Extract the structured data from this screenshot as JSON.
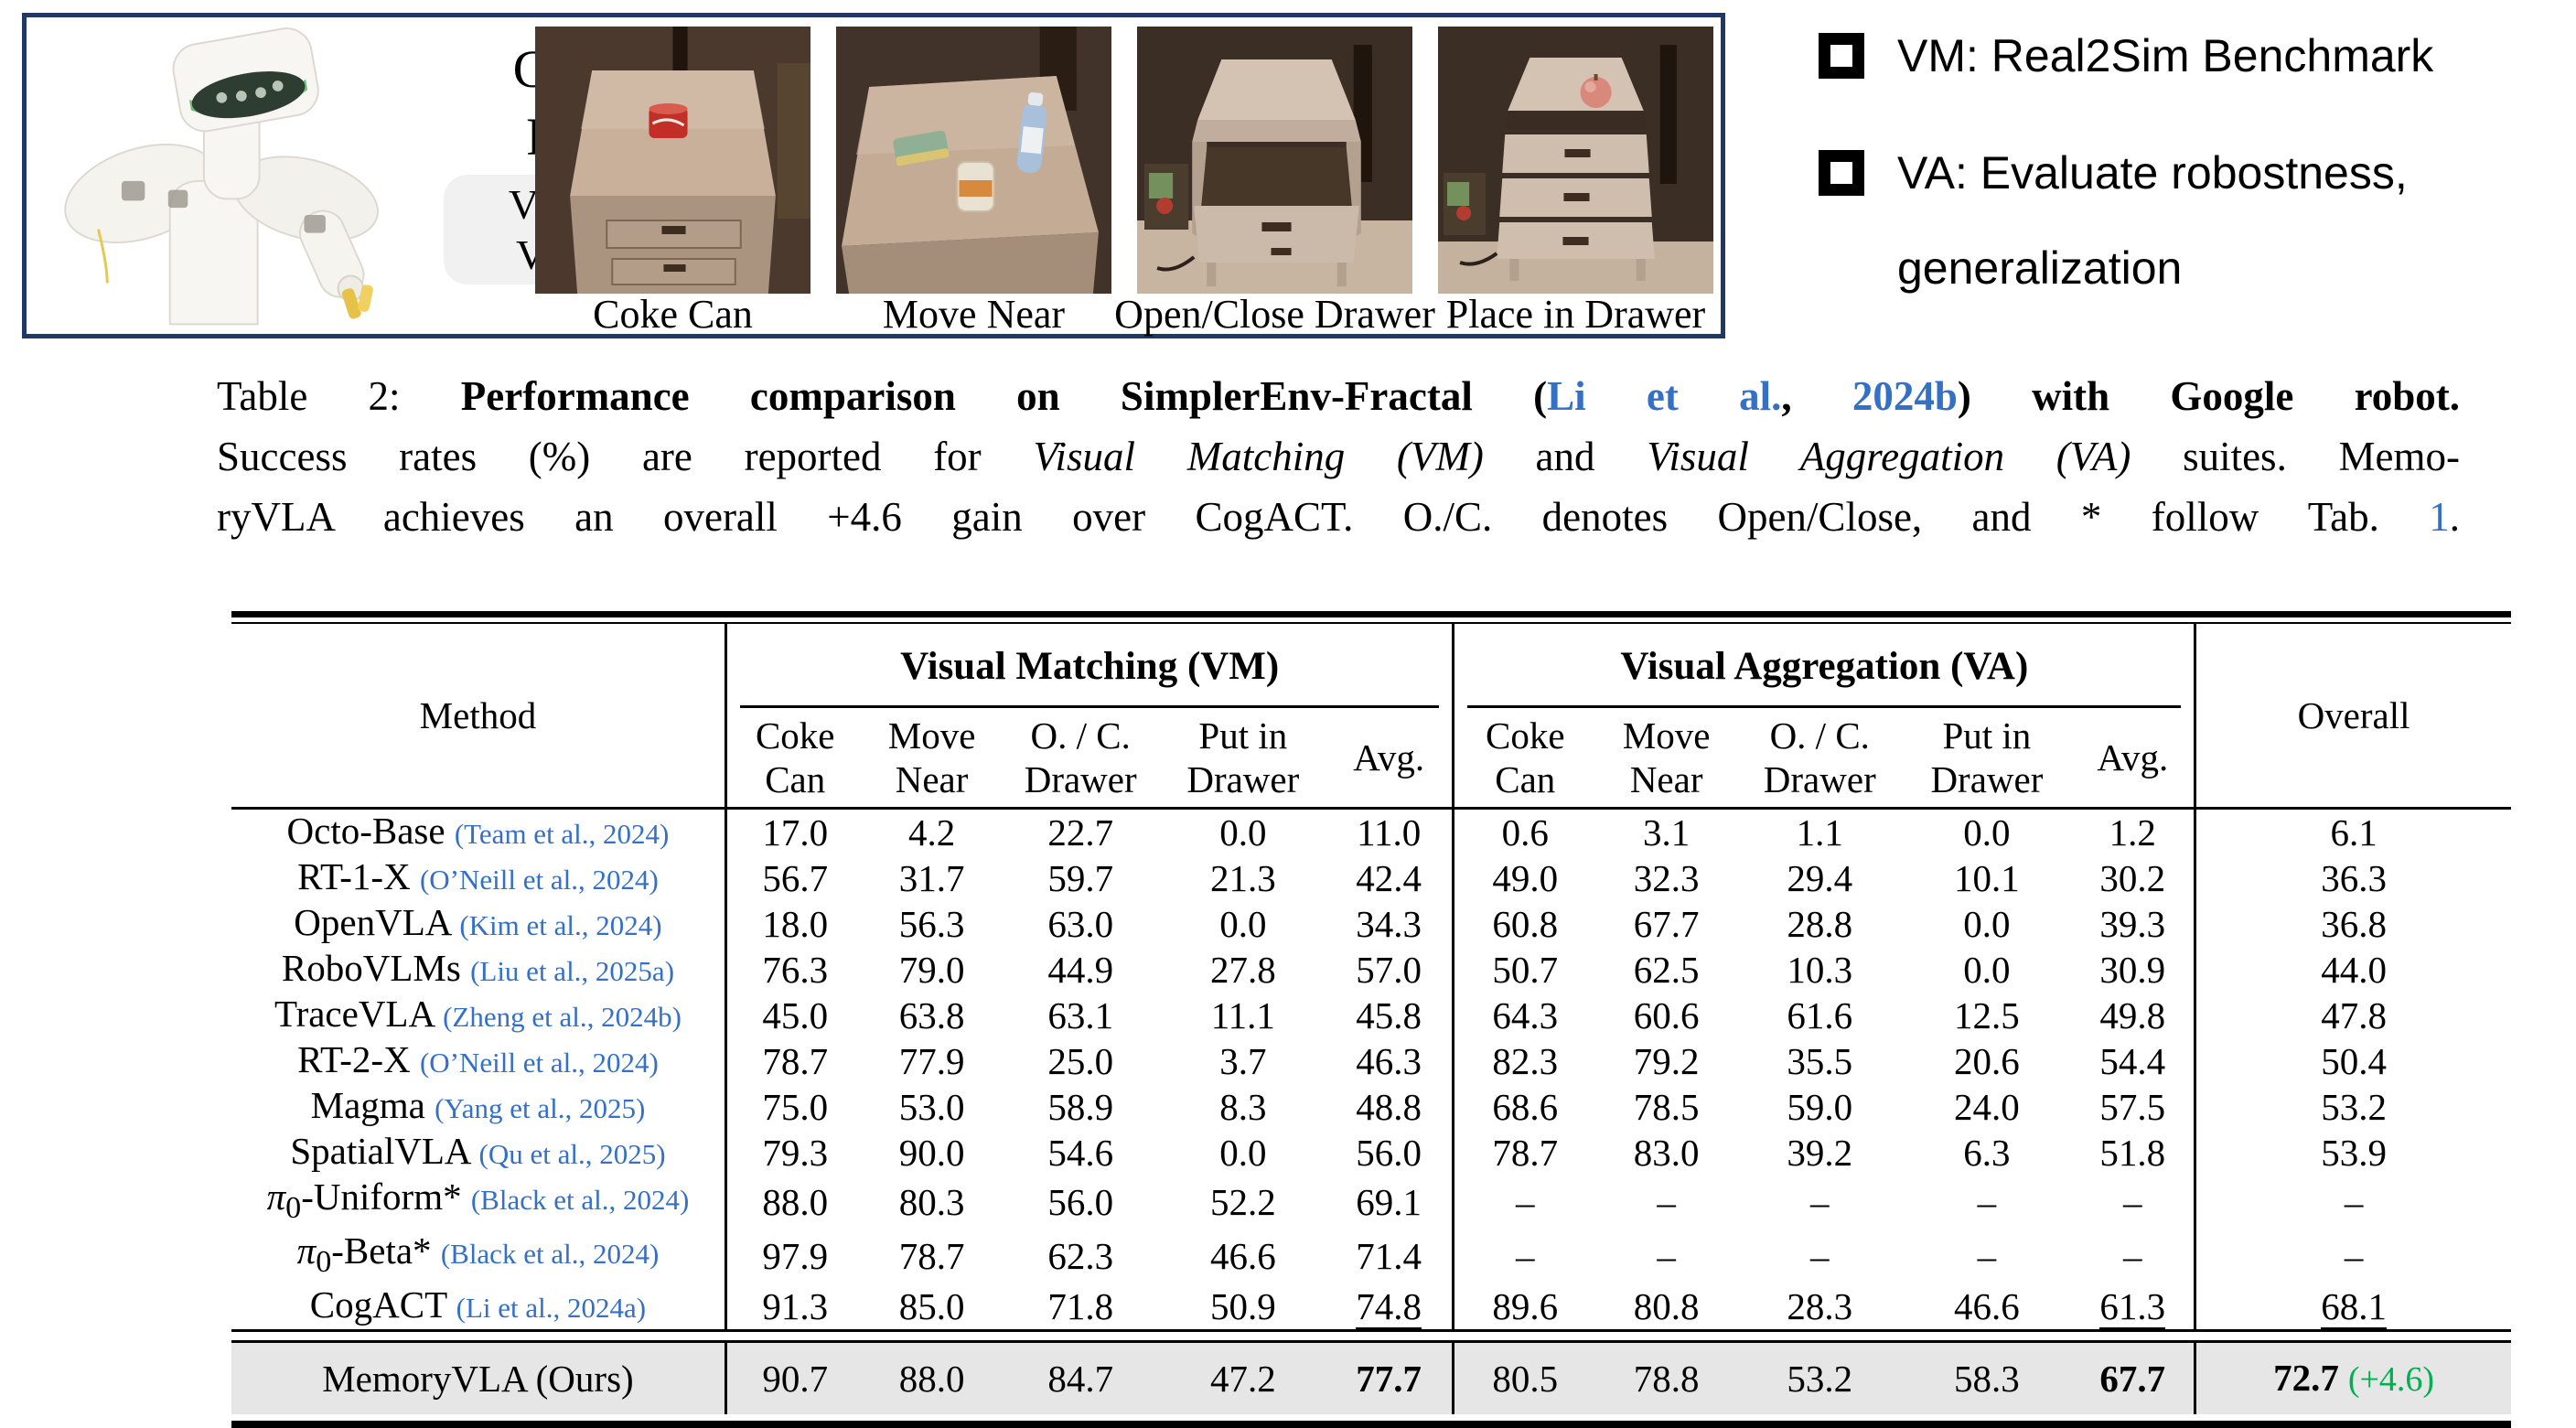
{
  "figure": {
    "robot_label_line1": "Google",
    "robot_label_line2": "Robot",
    "suite_box": [
      "VM Suite",
      "VA Suite"
    ],
    "tasks": [
      "Coke Can",
      "Move Near",
      "Open/Close Drawer",
      "Place in Drawer"
    ]
  },
  "bullets": {
    "item1": "VM: Real2Sim Benchmark",
    "item2_line1": "VA: Evaluate robostness,",
    "item2_line2": "generalization"
  },
  "caption": {
    "lines": [
      [
        {
          "t": "Table 2: ",
          "s": "n"
        },
        {
          "t": "Performance comparison on SimplerEnv-Fractal (",
          "s": "b"
        },
        {
          "t": "Li et al.",
          "s": "bb"
        },
        {
          "t": ", ",
          "s": "b"
        },
        {
          "t": "2024b",
          "s": "bb"
        },
        {
          "t": ") with Google robot.",
          "s": "b"
        }
      ],
      [
        {
          "t": "Success rates (%) are reported for ",
          "s": "n"
        },
        {
          "t": "Visual Matching (VM)",
          "s": "i"
        },
        {
          "t": " and ",
          "s": "n"
        },
        {
          "t": "Visual Aggregation (VA)",
          "s": "i"
        },
        {
          "t": " suites. Memo-",
          "s": "n"
        }
      ],
      [
        {
          "t": "ryVLA achieves an overall +4.6 gain over CogACT. O./C. denotes Open/Close, and * follow Tab. ",
          "s": "n"
        },
        {
          "t": "1",
          "s": "lb"
        },
        {
          "t": ".",
          "s": "n"
        }
      ]
    ]
  },
  "table": {
    "method_header": "Method",
    "overall_header": "Overall",
    "groups": [
      {
        "label": "Visual Matching (VM)",
        "columns": [
          [
            "Coke",
            "Can"
          ],
          [
            "Move",
            "Near"
          ],
          [
            "O. / C.",
            "Drawer"
          ],
          [
            "Put in",
            "Drawer"
          ],
          [
            "Avg."
          ]
        ]
      },
      {
        "label": "Visual Aggregation (VA)",
        "columns": [
          [
            "Coke",
            "Can"
          ],
          [
            "Move",
            "Near"
          ],
          [
            "O. / C.",
            "Drawer"
          ],
          [
            "Put in",
            "Drawer"
          ],
          [
            "Avg."
          ]
        ]
      }
    ],
    "rows": [
      {
        "method": "Octo-Base",
        "cite": "(Team et al., 2024)",
        "vm": [
          "17.0",
          "4.2",
          "22.7",
          "0.0",
          "11.0"
        ],
        "va": [
          "0.6",
          "3.1",
          "1.1",
          "0.0",
          "1.2"
        ],
        "overall": "6.1"
      },
      {
        "method": "RT-1-X",
        "cite": "(O’Neill et al., 2024)",
        "vm": [
          "56.7",
          "31.7",
          "59.7",
          "21.3",
          "42.4"
        ],
        "va": [
          "49.0",
          "32.3",
          "29.4",
          "10.1",
          "30.2"
        ],
        "overall": "36.3"
      },
      {
        "method": "OpenVLA",
        "cite": "(Kim et al., 2024)",
        "vm": [
          "18.0",
          "56.3",
          "63.0",
          "0.0",
          "34.3"
        ],
        "va": [
          "60.8",
          "67.7",
          "28.8",
          "0.0",
          "39.3"
        ],
        "overall": "36.8"
      },
      {
        "method": "RoboVLMs",
        "cite": "(Liu et al., 2025a)",
        "vm": [
          "76.3",
          "79.0",
          "44.9",
          "27.8",
          "57.0"
        ],
        "va": [
          "50.7",
          "62.5",
          "10.3",
          "0.0",
          "30.9"
        ],
        "overall": "44.0"
      },
      {
        "method": "TraceVLA",
        "cite": "(Zheng et al., 2024b)",
        "vm": [
          "45.0",
          "63.8",
          "63.1",
          "11.1",
          "45.8"
        ],
        "va": [
          "64.3",
          "60.6",
          "61.6",
          "12.5",
          "49.8"
        ],
        "overall": "47.8"
      },
      {
        "method": "RT-2-X",
        "cite": "(O’Neill et al., 2024)",
        "vm": [
          "78.7",
          "77.9",
          "25.0",
          "3.7",
          "46.3"
        ],
        "va": [
          "82.3",
          "79.2",
          "35.5",
          "20.6",
          "54.4"
        ],
        "overall": "50.4"
      },
      {
        "method": "Magma",
        "cite": "(Yang et al., 2025)",
        "vm": [
          "75.0",
          "53.0",
          "58.9",
          "8.3",
          "48.8"
        ],
        "va": [
          "68.6",
          "78.5",
          "59.0",
          "24.0",
          "57.5"
        ],
        "overall": "53.2"
      },
      {
        "method": "SpatialVLA",
        "cite": "(Qu et al., 2025)",
        "vm": [
          "79.3",
          "90.0",
          "54.6",
          "0.0",
          "56.0"
        ],
        "va": [
          "78.7",
          "83.0",
          "39.2",
          "6.3",
          "51.8"
        ],
        "overall": "53.9"
      },
      {
        "method": "π0-Uniform*",
        "cite": "(Black et al., 2024)",
        "vm": [
          "88.0",
          "80.3",
          "56.0",
          "52.2",
          "69.1"
        ],
        "va": [
          "–",
          "–",
          "–",
          "–",
          "–"
        ],
        "overall": "–"
      },
      {
        "method": "π0-Beta*",
        "cite": "(Black et al., 2024)",
        "vm": [
          "97.9",
          "78.7",
          "62.3",
          "46.6",
          "71.4"
        ],
        "va": [
          "–",
          "–",
          "–",
          "–",
          "–"
        ],
        "overall": "–"
      },
      {
        "method": "CogACT",
        "cite": "(Li et al., 2024a)",
        "vm": [
          "91.3",
          "85.0",
          "71.8",
          "50.9",
          "74.8"
        ],
        "va": [
          "89.6",
          "80.8",
          "28.3",
          "46.6",
          "61.3"
        ],
        "overall": "68.1",
        "underline": true
      },
      {
        "method": "MemoryVLA (Ours)",
        "cite": "",
        "vm": [
          "90.7",
          "88.0",
          "84.7",
          "47.2",
          "77.7"
        ],
        "va": [
          "80.5",
          "78.8",
          "53.2",
          "58.3",
          "67.7"
        ],
        "overall": "72.7",
        "delta": "(+4.6)",
        "bold": true,
        "highlight": true
      }
    ]
  },
  "colors": {
    "citation_blue": "#3470c4",
    "gain_green": "#00b050",
    "highlight_gray": "#e6e6e6",
    "panel_border_navy": "#203864"
  }
}
